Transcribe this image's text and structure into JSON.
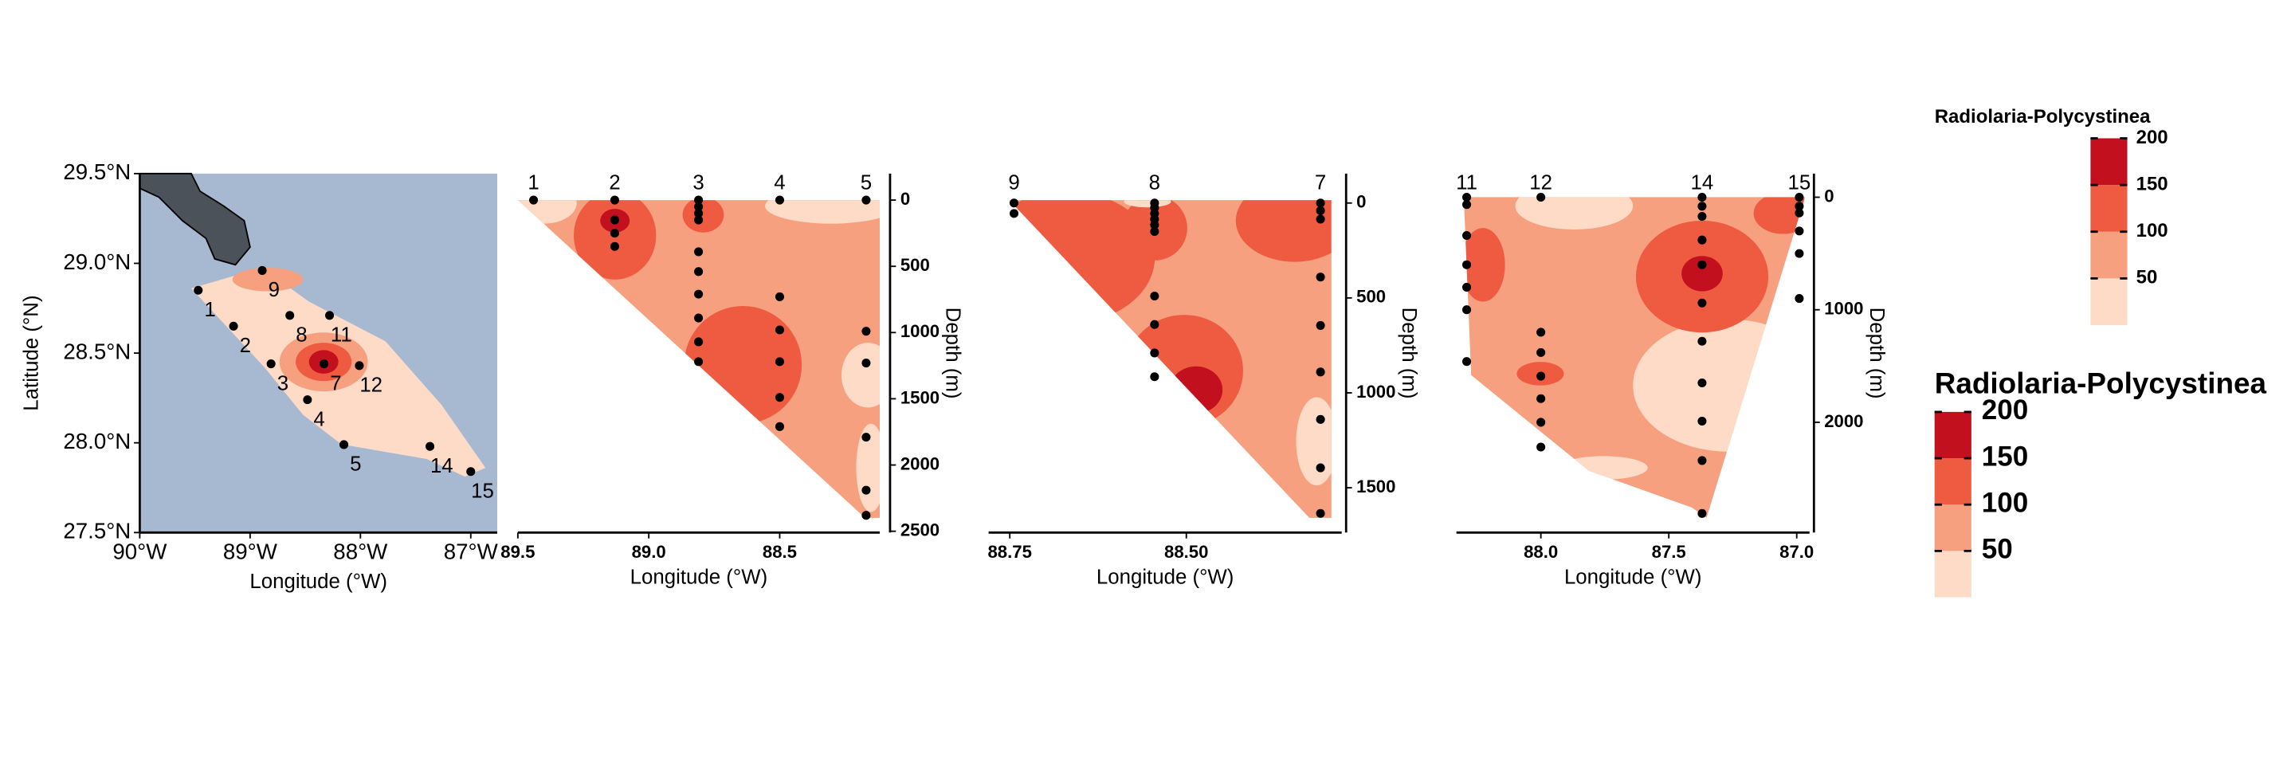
{
  "chart_data": [
    {
      "type": "map",
      "xlabel": "Longitude (°W)",
      "ylabel": "Latitude (°N)",
      "xlim": [
        -90,
        -86.76
      ],
      "ylim": [
        27.5,
        29.5
      ],
      "xticks": [
        {
          "value": -90,
          "label": "90°W"
        },
        {
          "value": -89,
          "label": "89°W"
        },
        {
          "value": -88,
          "label": "88°W"
        },
        {
          "value": -87,
          "label": "87°W"
        }
      ],
      "yticks": [
        {
          "value": 27.5,
          "label": "27.5°N"
        },
        {
          "value": 28,
          "label": "28.0°N"
        },
        {
          "value": 28.5,
          "label": "28.5°N"
        },
        {
          "value": 29,
          "label": "29.0°N"
        },
        {
          "value": 29.5,
          "label": "29.5°N"
        }
      ],
      "stations": {
        "labels": [
          "1",
          "2",
          "9",
          "8",
          "11",
          "7",
          "12",
          "3",
          "4",
          "5",
          "14",
          "15"
        ],
        "x": [
          -89.47,
          -89.15,
          -88.89,
          -88.64,
          -88.28,
          -88.33,
          -88.01,
          -88.81,
          -88.48,
          -88.15,
          -87.37,
          -87.0
        ],
        "y": [
          28.85,
          28.65,
          28.96,
          28.71,
          28.71,
          28.44,
          28.43,
          28.44,
          28.24,
          27.99,
          27.98,
          27.84
        ]
      }
    },
    {
      "type": "contour",
      "xlabel": "Longitude (°W)",
      "ylabel": "Depth (m)",
      "xlim": [
        89.5,
        88.118
      ],
      "ylim": [
        2510,
        -200
      ],
      "xticks": [
        89.5,
        {
          "value": 89,
          "label": "89.0"
        },
        88.5
      ],
      "yticks": [
        0,
        500,
        1000,
        1500,
        2000,
        2500
      ],
      "station_labels": [
        "1",
        "2",
        "3",
        "4",
        "5"
      ],
      "station_x": [
        89.44,
        89.13,
        88.81,
        88.5,
        88.17
      ],
      "samples": {
        "x": [
          89.44,
          89.13,
          89.13,
          89.13,
          89.13,
          88.81,
          88.81,
          88.81,
          88.81,
          88.81,
          88.81,
          88.81,
          88.81,
          88.81,
          88.81,
          88.5,
          88.5,
          88.5,
          88.5,
          88.5,
          88.5,
          88.17,
          88.17,
          88.17,
          88.17,
          88.17,
          88.17
        ],
        "y": [
          0,
          0,
          150,
          250,
          350,
          0,
          50,
          100,
          150,
          390,
          540,
          710,
          890,
          1070,
          1220,
          0,
          730,
          980,
          1220,
          1490,
          1710,
          0,
          990,
          1230,
          1790,
          2190,
          2380
        ]
      }
    },
    {
      "type": "contour",
      "xlabel": "Longitude (°W)",
      "ylabel": "Depth (m)",
      "xlim": [
        88.78,
        88.28
      ],
      "ylim": [
        1736,
        -155
      ],
      "xticks": [
        88.75,
        {
          "value": 88.5,
          "label": "88.50"
        }
      ],
      "yticks": [
        0,
        500,
        1000,
        1500
      ],
      "station_labels": [
        "9",
        "8",
        "7"
      ],
      "station_x": [
        88.744,
        88.545,
        88.31
      ],
      "samples": {
        "x": [
          88.744,
          88.744,
          88.545,
          88.545,
          88.545,
          88.545,
          88.545,
          88.545,
          88.545,
          88.545,
          88.545,
          88.545,
          88.31,
          88.31,
          88.31,
          88.31,
          88.31,
          88.31,
          88.31,
          88.31,
          88.31
        ],
        "y": [
          0,
          55,
          0,
          25,
          55,
          85,
          115,
          150,
          490,
          640,
          790,
          915,
          0,
          40,
          85,
          390,
          645,
          890,
          1140,
          1395,
          1635
        ]
      }
    },
    {
      "type": "contour",
      "xlabel": "Longitude (°W)",
      "ylabel": "Depth (m)",
      "xlim": [
        88.33,
        86.95
      ],
      "ylim": [
        2980,
        -210
      ],
      "xticks": [
        {
          "value": 88,
          "label": "88.0"
        },
        87.5,
        {
          "value": 87,
          "label": "87.0"
        }
      ],
      "yticks": [
        0,
        1000,
        2000
      ],
      "station_labels": [
        "11",
        "12",
        "14",
        "15"
      ],
      "station_x": [
        88.29,
        88.0,
        87.37,
        86.99
      ],
      "samples": {
        "x": [
          88.29,
          88.29,
          88.29,
          88.29,
          88.29,
          88.29,
          88.29,
          88.0,
          88.0,
          88.0,
          88.0,
          88.0,
          88.0,
          88.0,
          87.37,
          87.37,
          87.37,
          87.37,
          87.37,
          87.37,
          87.37,
          87.37,
          87.37,
          87.37,
          87.37,
          86.99,
          86.99,
          86.99,
          86.99,
          86.99,
          86.99
        ],
        "y": [
          0,
          65,
          340,
          600,
          800,
          1000,
          1460,
          0,
          1200,
          1380,
          1590,
          1790,
          2000,
          2220,
          0,
          80,
          170,
          380,
          600,
          940,
          1280,
          1650,
          1990,
          2340,
          2810,
          0,
          80,
          140,
          300,
          500,
          900
        ]
      }
    }
  ],
  "legends": [
    {
      "title": "Radiolaria-Polycystinea",
      "lim": [
        0,
        200
      ],
      "breaks": [
        50,
        100,
        150,
        200
      ],
      "colors": [
        "#fddbc7",
        "#f6a07f",
        "#ef5b41",
        "#c2101f"
      ]
    },
    {
      "title": "Radiolaria-Polycystinea",
      "lim": [
        0,
        200
      ],
      "breaks": [
        50,
        100,
        150,
        200
      ],
      "colors": [
        "#fddbc7",
        "#f6a07f",
        "#ef5b41",
        "#c2101f"
      ]
    }
  ]
}
